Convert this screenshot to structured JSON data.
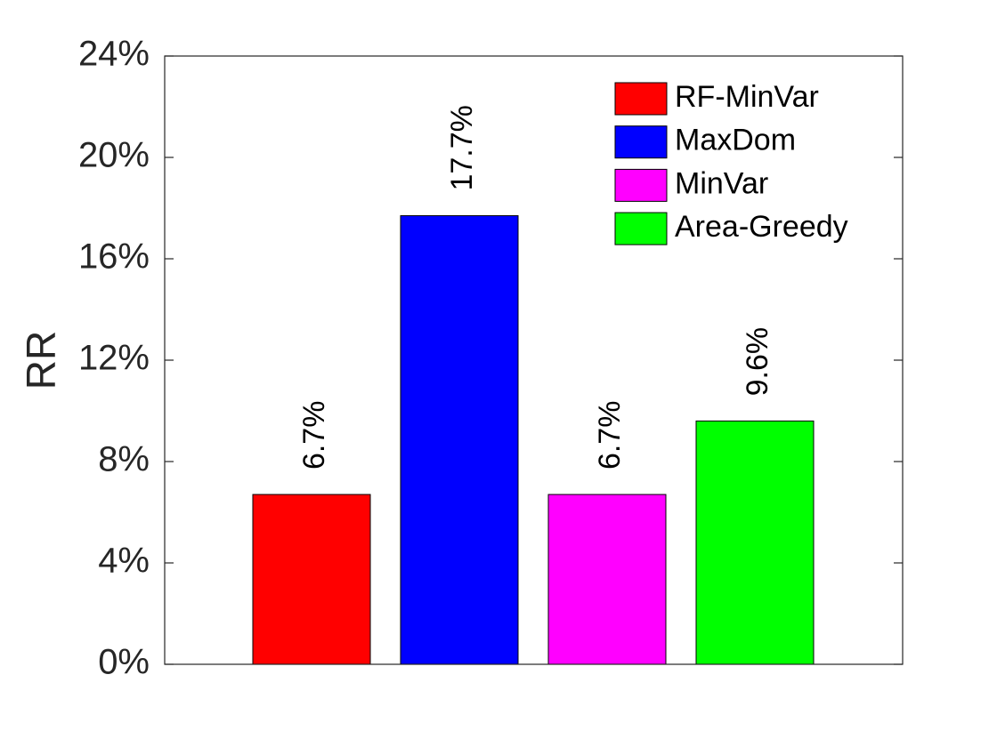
{
  "chart_data": {
    "type": "bar",
    "title": "",
    "xlabel": "",
    "ylabel": "RR",
    "ylim": [
      0,
      24
    ],
    "y_unit": "%",
    "yticks": [
      0,
      4,
      8,
      12,
      16,
      20,
      24
    ],
    "ytick_labels": [
      "0%",
      "4%",
      "8%",
      "12%",
      "16%",
      "20%",
      "24%"
    ],
    "grid": false,
    "legend_position": "top-right",
    "series": [
      {
        "name": "RF-MinVar",
        "value": 6.7,
        "label": "6.7%",
        "color": "#ff0000"
      },
      {
        "name": "MaxDom",
        "value": 17.7,
        "label": "17.7%",
        "color": "#0000ff"
      },
      {
        "name": "MinVar",
        "value": 6.7,
        "label": "6.7%",
        "color": "#ff00ff"
      },
      {
        "name": "Area-Greedy",
        "value": 9.6,
        "label": "9.6%",
        "color": "#00ff00"
      }
    ]
  }
}
